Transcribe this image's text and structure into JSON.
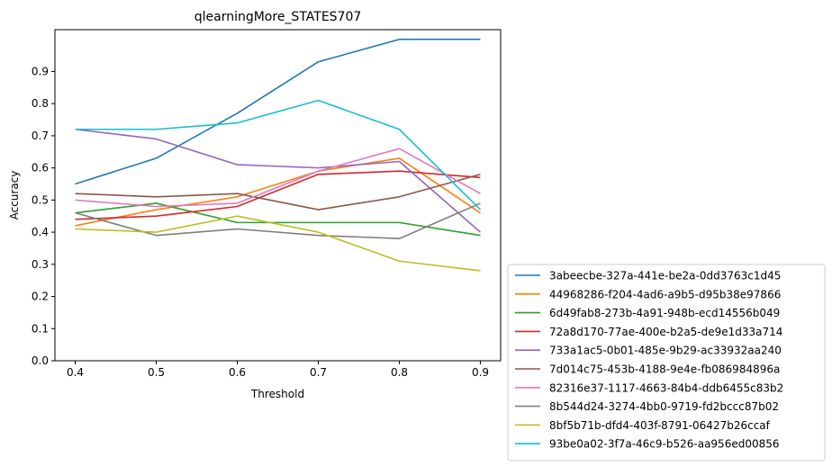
{
  "chart_data": {
    "type": "line",
    "title": "qlearningMore_STATES707",
    "xlabel": "Threshold",
    "ylabel": "Accuracy",
    "x": [
      0.4,
      0.5,
      0.6,
      0.7,
      0.8,
      0.9
    ],
    "xticks": [
      "0.4",
      "0.5",
      "0.6",
      "0.7",
      "0.8",
      "0.9"
    ],
    "yticks": [
      "0.0",
      "0.1",
      "0.2",
      "0.3",
      "0.4",
      "0.5",
      "0.6",
      "0.7",
      "0.8",
      "0.9"
    ],
    "xlim": [
      0.375,
      0.925
    ],
    "ylim": [
      0.0,
      1.03
    ],
    "grid": false,
    "legend_position": "outside-lower-right",
    "series": [
      {
        "name": "3abeecbe-327a-441e-be2a-0dd3763c1d45",
        "color": "#1f77b4",
        "values": [
          0.55,
          0.63,
          0.77,
          0.93,
          1.0,
          1.0
        ]
      },
      {
        "name": "44968286-f204-4ad6-a9b5-d95b38e97866",
        "color": "#ff7f0e",
        "values": [
          0.42,
          0.47,
          0.51,
          0.59,
          0.63,
          0.46
        ]
      },
      {
        "name": "6d49fab8-273b-4a91-948b-ecd14556b049",
        "color": "#2ca02c",
        "values": [
          0.46,
          0.49,
          0.43,
          0.43,
          0.43,
          0.39
        ]
      },
      {
        "name": "72a8d170-77ae-400e-b2a5-de9e1d33a714",
        "color": "#d62728",
        "values": [
          0.44,
          0.45,
          0.48,
          0.58,
          0.59,
          0.57
        ]
      },
      {
        "name": "733a1ac5-0b01-485e-9b29-ac33932aa240",
        "color": "#9467bd",
        "values": [
          0.72,
          0.69,
          0.61,
          0.6,
          0.62,
          0.4
        ]
      },
      {
        "name": "7d014c75-453b-4188-9e4e-fb086984896a",
        "color": "#8c564b",
        "values": [
          0.52,
          0.51,
          0.52,
          0.47,
          0.51,
          0.58
        ]
      },
      {
        "name": "82316e37-1117-4663-84b4-ddb6455c83b2",
        "color": "#e377c2",
        "values": [
          0.5,
          0.48,
          0.49,
          0.59,
          0.66,
          0.52
        ]
      },
      {
        "name": "8b544d24-3274-4bb0-9719-fd2bccc87b02",
        "color": "#7f7f7f",
        "values": [
          0.46,
          0.39,
          0.41,
          0.39,
          0.38,
          0.49
        ]
      },
      {
        "name": "8bf5b71b-dfd4-403f-8791-06427b26ccaf",
        "color": "#bcbd22",
        "values": [
          0.41,
          0.4,
          0.45,
          0.4,
          0.31,
          0.28
        ]
      },
      {
        "name": "93be0a02-3f7a-46c9-b526-aa956ed00856",
        "color": "#17becf",
        "values": [
          0.72,
          0.72,
          0.74,
          0.81,
          0.72,
          0.47
        ]
      }
    ]
  }
}
